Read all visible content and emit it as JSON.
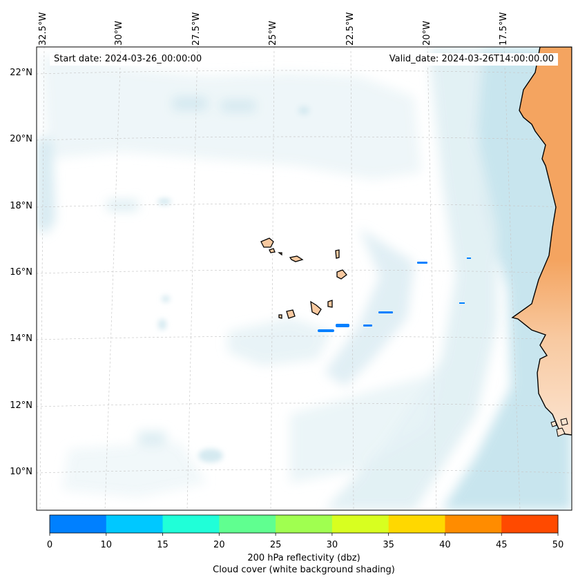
{
  "map": {
    "start_date_text": "Start date: 2024-03-26_00:00:00",
    "valid_date_text": "Valid_date: 2024-03-26T14:00:00.00",
    "longitude_labels": [
      "32.5°W",
      "30°W",
      "27.5°W",
      "25°W",
      "22.5°W",
      "20°W",
      "17.5°W"
    ],
    "latitude_labels": [
      "22°N",
      "20°N",
      "18°N",
      "16°N",
      "14°N",
      "12°N",
      "10°N"
    ],
    "colors": {
      "land": "#f4a460",
      "cloud_light": "#dcedf2",
      "cloud_mid": "#add8e6",
      "reflectivity_low": "#0080ff"
    }
  },
  "colorbar": {
    "tick_labels": [
      "0",
      "10",
      "15",
      "20",
      "25",
      "30",
      "35",
      "40",
      "45",
      "50"
    ],
    "colors": [
      "#0080ff",
      "#00c8ff",
      "#20ffd8",
      "#60ff90",
      "#a0ff50",
      "#d8ff20",
      "#ffd800",
      "#ff8c00",
      "#ff4a00"
    ],
    "title_line1": "200 hPa reflectivity (dbz)",
    "title_line2": "Cloud cover (white background shading)"
  }
}
